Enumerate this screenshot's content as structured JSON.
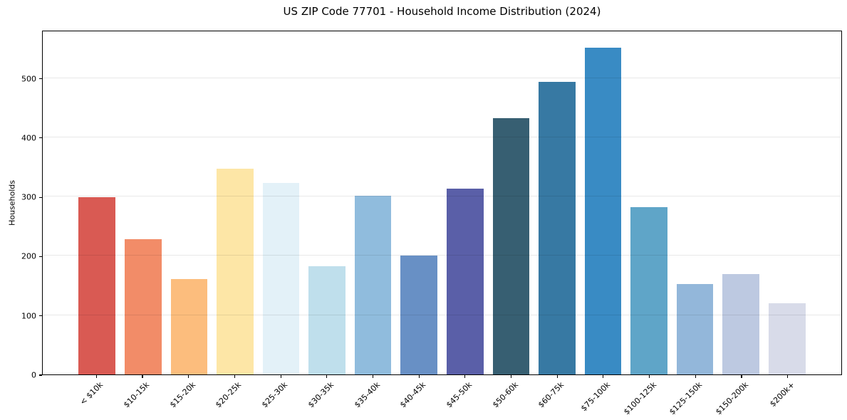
{
  "chart_data": {
    "type": "bar",
    "title": "US ZIP Code 77701 - Household Income Distribution (2024)",
    "xlabel": "",
    "ylabel": "Households",
    "categories": [
      "< $10k",
      "$10-15k",
      "$15-20k",
      "$20-25k",
      "$25-30k",
      "$30-35k",
      "$35-40k",
      "$40-45k",
      "$45-50k",
      "$50-60k",
      "$60-75k",
      "$75-100k",
      "$100-125k",
      "$125-150k",
      "$150-200k",
      "$200k+"
    ],
    "values": [
      299,
      228,
      161,
      347,
      323,
      183,
      301,
      201,
      313,
      432,
      494,
      551,
      282,
      153,
      169,
      120
    ],
    "bar_colors": [
      "#d95a53",
      "#f28c68",
      "#fcbd7d",
      "#fde6a6",
      "#e3f1f8",
      "#bfdfec",
      "#90bcdd",
      "#6890c5",
      "#5a5fa8",
      "#375f72",
      "#3779a3",
      "#398bc4",
      "#5fa5c8",
      "#93b7da",
      "#bdc9e1",
      "#d8dbe9"
    ],
    "ylim": [
      0,
      581
    ],
    "yticks": [
      0,
      100,
      200,
      300,
      400,
      500
    ],
    "grid": true,
    "gridline_color": "#e8e8e8",
    "legend": "none",
    "background_color": "#ffffff",
    "spine_color": "#000000"
  }
}
